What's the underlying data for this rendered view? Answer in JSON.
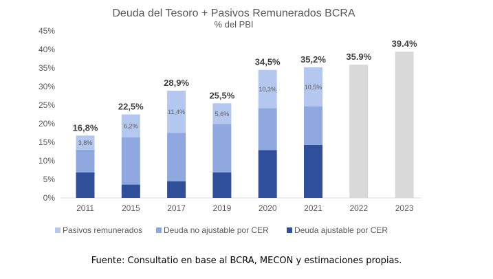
{
  "chart_data": {
    "type": "bar",
    "title": "Deuda del Tesoro + Pasivos Remunerados BCRA",
    "subtitle": "% del PBI",
    "categories": [
      "2011",
      "2015",
      "2017",
      "2019",
      "2020",
      "2021",
      "2022",
      "2023"
    ],
    "y_ticks": [
      "0%",
      "5%",
      "10%",
      "15%",
      "20%",
      "25%",
      "30%",
      "35%",
      "40%",
      "45%"
    ],
    "ylim": [
      0,
      45
    ],
    "stacked": true,
    "series": [
      {
        "name": "Deuda ajustable por CER",
        "color": "#2f4f9b",
        "values": [
          6.9,
          3.6,
          4.5,
          6.9,
          12.9,
          14.3,
          null,
          null
        ]
      },
      {
        "name": "Deuda no ajustable por CER",
        "color": "#8fa8e0",
        "values": [
          6.1,
          12.7,
          13.0,
          13.0,
          11.3,
          10.4,
          null,
          null
        ]
      },
      {
        "name": "Pasivos remunerados",
        "color": "#b4c7ee",
        "values": [
          3.8,
          6.2,
          11.4,
          5.6,
          10.3,
          10.5,
          null,
          null
        ],
        "segment_labels": [
          "3,8%",
          "6,2%",
          "11,4%",
          "5,6%",
          "10,3%",
          "10,5%",
          "",
          ""
        ]
      },
      {
        "name": "",
        "color": "#d9d9d9",
        "values": [
          null,
          null,
          null,
          null,
          null,
          null,
          35.9,
          39.4
        ]
      }
    ],
    "totals": [
      "16,8%",
      "22,5%",
      "28,9%",
      "25,5%",
      "34,5%",
      "35,2%",
      "35.9%",
      "39.4%"
    ],
    "total_values": [
      16.8,
      22.5,
      28.9,
      25.5,
      34.5,
      35.2,
      35.9,
      39.4
    ],
    "legend": {
      "position": "bottom",
      "items": [
        {
          "label": "Pasivos remunerados",
          "color": "#b4c7ee"
        },
        {
          "label": "Deuda no ajustable por CER",
          "color": "#8fa8e0"
        },
        {
          "label": "Deuda ajustable por CER",
          "color": "#2f4f9b"
        }
      ]
    },
    "grid": false
  },
  "footer": "Fuente: Consultatio en base al BCRA, MECON y estimaciones propias."
}
